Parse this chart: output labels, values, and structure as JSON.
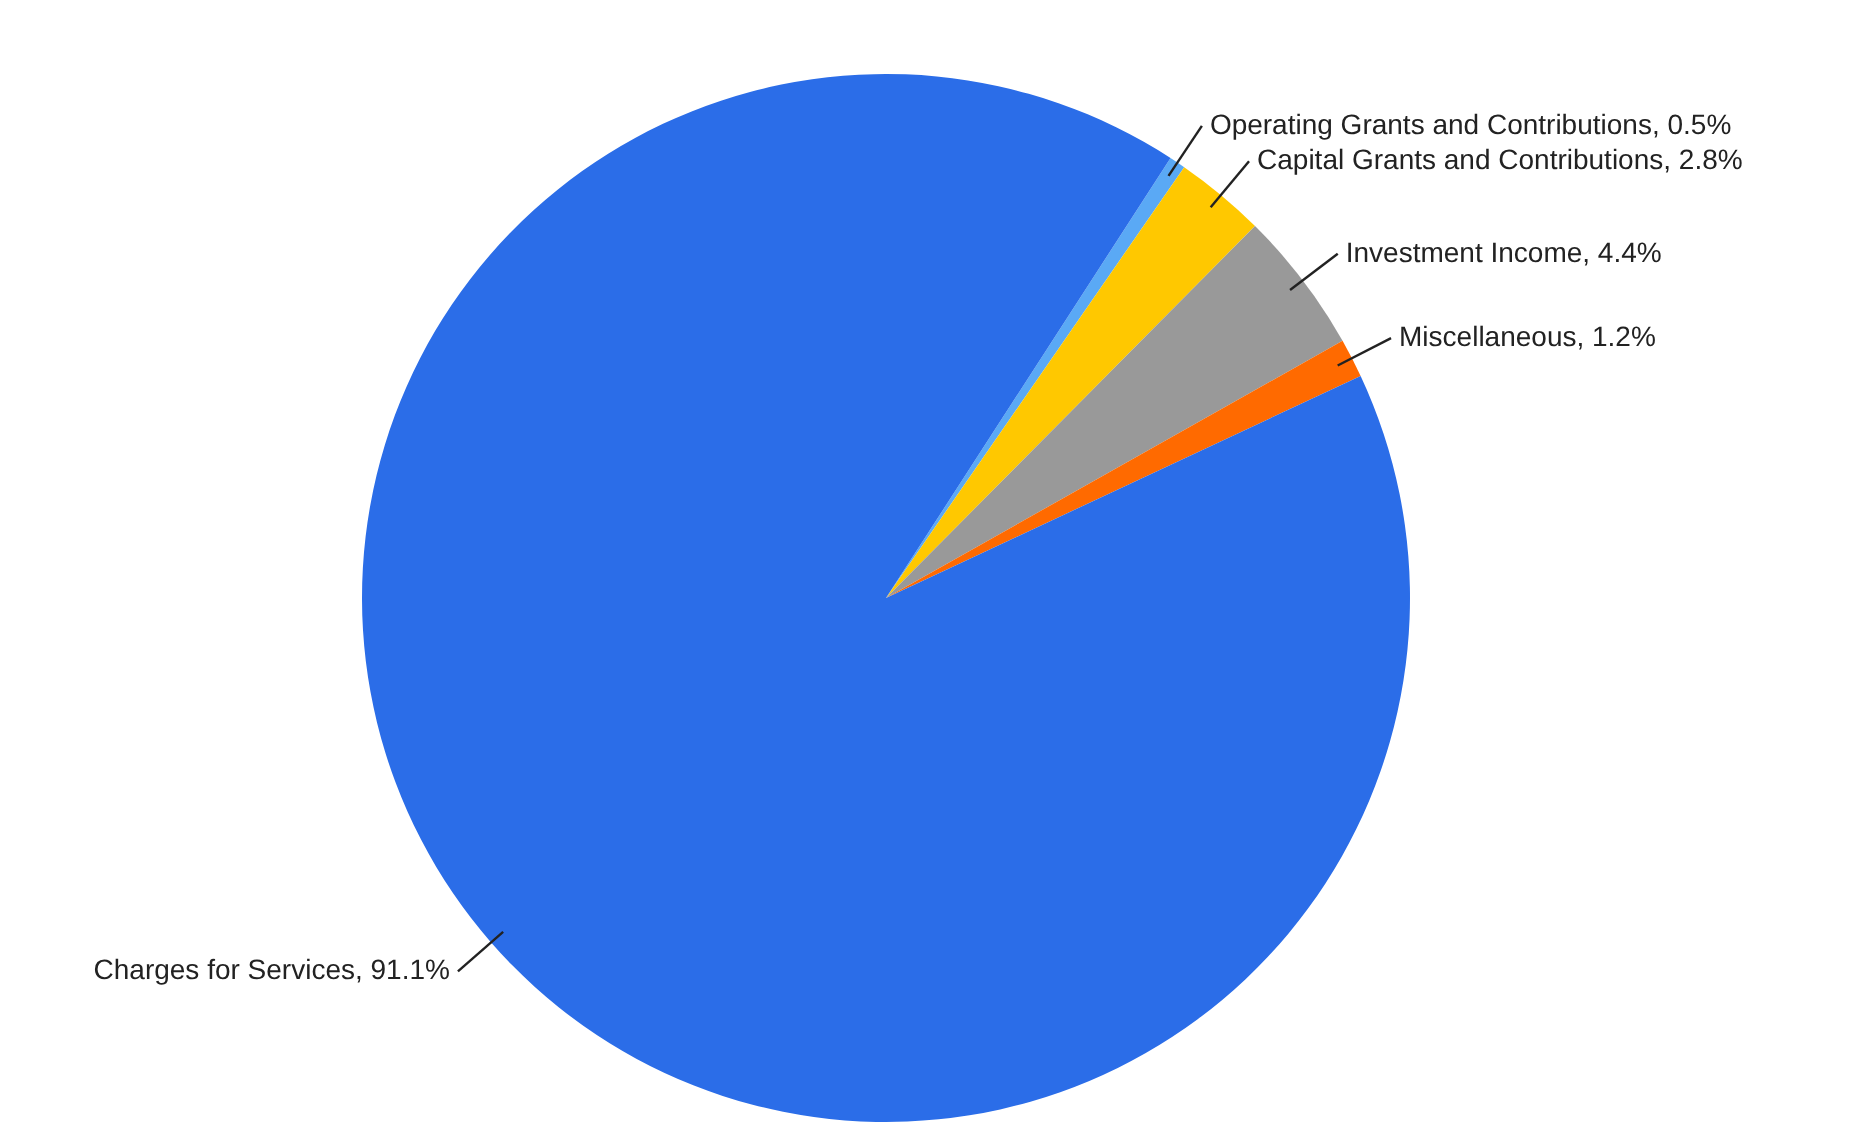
{
  "chart_data": {
    "type": "pie",
    "categories": [
      "Operating Grants and Contributions, 0.5%",
      "Capital Grants and Contributions, 2.8%",
      "Investment Income, 4.4%",
      "Miscellaneous, 1.2%",
      "Charges for Services, 91.1%"
    ],
    "values": [
      0.5,
      2.8,
      4.4,
      1.2,
      91.1
    ],
    "colors": [
      "#5aa9f5",
      "#ffc800",
      "#999999",
      "#ff6a00",
      "#2b6de8"
    ]
  }
}
